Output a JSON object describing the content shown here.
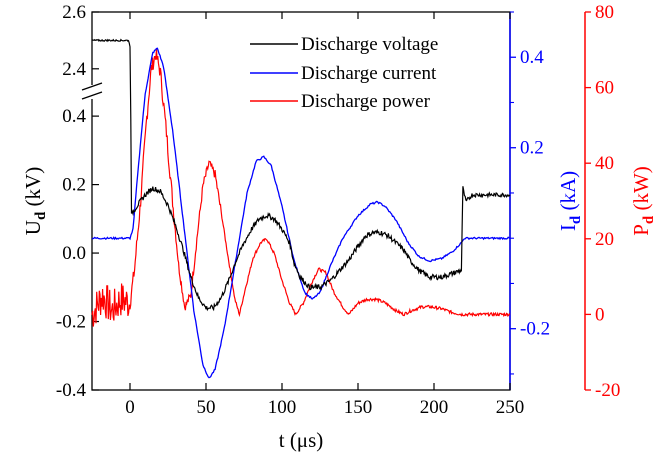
{
  "chart_data": {
    "type": "line",
    "xlabel": "t (μs)",
    "x_ticks": [
      0,
      50,
      100,
      150,
      200,
      250
    ],
    "xlim": [
      -25,
      250
    ],
    "y_left": {
      "label_main": "U",
      "label_sub": "d",
      "label_unit": " (kV)",
      "color": "#000000",
      "lower_segment": {
        "range": [
          -0.4,
          0.45
        ],
        "ticks": [
          "-0.4",
          "-0.2",
          "0.0",
          "0.2",
          "0.4"
        ]
      },
      "upper_segment": {
        "range": [
          2.35,
          2.6
        ],
        "ticks": [
          "2.4",
          "2.6"
        ]
      },
      "axis_break": true
    },
    "y_right_current": {
      "label_main": "I",
      "label_sub": "d",
      "label_unit": " (kA)",
      "color": "#0000ff",
      "range": [
        -0.3355,
        0.5
      ],
      "ticks": [
        "-0.2",
        "0.2",
        "0.4"
      ]
    },
    "y_right_power": {
      "label_main": "P",
      "label_sub": "d",
      "label_unit": " (kW)",
      "color": "#ff0000",
      "range": [
        -20,
        80
      ],
      "ticks": [
        "-20",
        "0",
        "20",
        "40",
        "60",
        "80"
      ]
    },
    "legend": {
      "placement": "top-right"
    },
    "series": [
      {
        "name": "Discharge voltage",
        "color": "#000000",
        "axis": "left",
        "points": [
          [
            -25,
            2.5
          ],
          [
            -1,
            2.5
          ],
          [
            0,
            2.48
          ],
          [
            0.5,
            0.4
          ],
          [
            1,
            0.11
          ],
          [
            2,
            0.12
          ],
          [
            5,
            0.14
          ],
          [
            10,
            0.17
          ],
          [
            15,
            0.19
          ],
          [
            20,
            0.18
          ],
          [
            25,
            0.14
          ],
          [
            30,
            0.08
          ],
          [
            35,
            0.01
          ],
          [
            40,
            -0.07
          ],
          [
            45,
            -0.13
          ],
          [
            50,
            -0.16
          ],
          [
            55,
            -0.16
          ],
          [
            60,
            -0.13
          ],
          [
            65,
            -0.08
          ],
          [
            70,
            -0.02
          ],
          [
            75,
            0.03
          ],
          [
            80,
            0.07
          ],
          [
            85,
            0.1
          ],
          [
            90,
            0.11
          ],
          [
            95,
            0.1
          ],
          [
            100,
            0.07
          ],
          [
            105,
            0.03
          ],
          [
            108,
            -0.03
          ],
          [
            112,
            -0.07
          ],
          [
            118,
            -0.1
          ],
          [
            125,
            -0.1
          ],
          [
            132,
            -0.08
          ],
          [
            138,
            -0.05
          ],
          [
            144,
            -0.02
          ],
          [
            150,
            0.02
          ],
          [
            155,
            0.05
          ],
          [
            160,
            0.06
          ],
          [
            165,
            0.06
          ],
          [
            170,
            0.05
          ],
          [
            175,
            0.03
          ],
          [
            180,
            0.01
          ],
          [
            184,
            -0.02
          ],
          [
            190,
            -0.05
          ],
          [
            197,
            -0.07
          ],
          [
            205,
            -0.07
          ],
          [
            212,
            -0.06
          ],
          [
            218,
            -0.05
          ],
          [
            219,
            0.19
          ],
          [
            221,
            0.15
          ],
          [
            225,
            0.17
          ],
          [
            235,
            0.17
          ],
          [
            250,
            0.17
          ]
        ]
      },
      {
        "name": "Discharge current",
        "color": "#0000ff",
        "axis": "right-current",
        "points": [
          [
            -25,
            0.0
          ],
          [
            0,
            0.0
          ],
          [
            2,
            0.02
          ],
          [
            5,
            0.14
          ],
          [
            10,
            0.32
          ],
          [
            15,
            0.41
          ],
          [
            18,
            0.42
          ],
          [
            22,
            0.38
          ],
          [
            28,
            0.24
          ],
          [
            35,
            0.04
          ],
          [
            42,
            -0.16
          ],
          [
            48,
            -0.28
          ],
          [
            52,
            -0.31
          ],
          [
            56,
            -0.29
          ],
          [
            62,
            -0.2
          ],
          [
            70,
            -0.04
          ],
          [
            77,
            0.1
          ],
          [
            83,
            0.17
          ],
          [
            88,
            0.18
          ],
          [
            93,
            0.16
          ],
          [
            100,
            0.07
          ],
          [
            108,
            -0.05
          ],
          [
            115,
            -0.12
          ],
          [
            120,
            -0.135
          ],
          [
            125,
            -0.12
          ],
          [
            132,
            -0.06
          ],
          [
            140,
            0.0
          ],
          [
            150,
            0.05
          ],
          [
            158,
            0.075
          ],
          [
            163,
            0.08
          ],
          [
            168,
            0.07
          ],
          [
            175,
            0.04
          ],
          [
            183,
            -0.01
          ],
          [
            190,
            -0.04
          ],
          [
            197,
            -0.05
          ],
          [
            205,
            -0.045
          ],
          [
            212,
            -0.03
          ],
          [
            218,
            -0.01
          ],
          [
            220,
            0.0
          ],
          [
            250,
            0.0
          ]
        ]
      },
      {
        "name": "Discharge power",
        "color": "#ff0000",
        "axis": "right-power",
        "points": [
          [
            -25,
            0
          ],
          [
            -18,
            5
          ],
          [
            -12,
            1
          ],
          [
            -6,
            4
          ],
          [
            0,
            3
          ],
          [
            3,
            12
          ],
          [
            7,
            30
          ],
          [
            11,
            52
          ],
          [
            14,
            65
          ],
          [
            17,
            69
          ],
          [
            20,
            64
          ],
          [
            24,
            48
          ],
          [
            28,
            30
          ],
          [
            32,
            13
          ],
          [
            36,
            2
          ],
          [
            40,
            5
          ],
          [
            44,
            20
          ],
          [
            48,
            34
          ],
          [
            52,
            40
          ],
          [
            56,
            37
          ],
          [
            60,
            27
          ],
          [
            65,
            14
          ],
          [
            69,
            4
          ],
          [
            72,
            0
          ],
          [
            76,
            7
          ],
          [
            81,
            15
          ],
          [
            86,
            19
          ],
          [
            90,
            20
          ],
          [
            95,
            16
          ],
          [
            100,
            9
          ],
          [
            105,
            3
          ],
          [
            109,
            0
          ],
          [
            114,
            3
          ],
          [
            119,
            8
          ],
          [
            124,
            12
          ],
          [
            129,
            11
          ],
          [
            134,
            6
          ],
          [
            140,
            2
          ],
          [
            144,
            0
          ],
          [
            150,
            3
          ],
          [
            156,
            4
          ],
          [
            162,
            4
          ],
          [
            168,
            3
          ],
          [
            175,
            1
          ],
          [
            180,
            0
          ],
          [
            185,
            1
          ],
          [
            192,
            2
          ],
          [
            198,
            2
          ],
          [
            205,
            1.5
          ],
          [
            212,
            0.5
          ],
          [
            218,
            0
          ],
          [
            250,
            0
          ]
        ]
      }
    ]
  }
}
